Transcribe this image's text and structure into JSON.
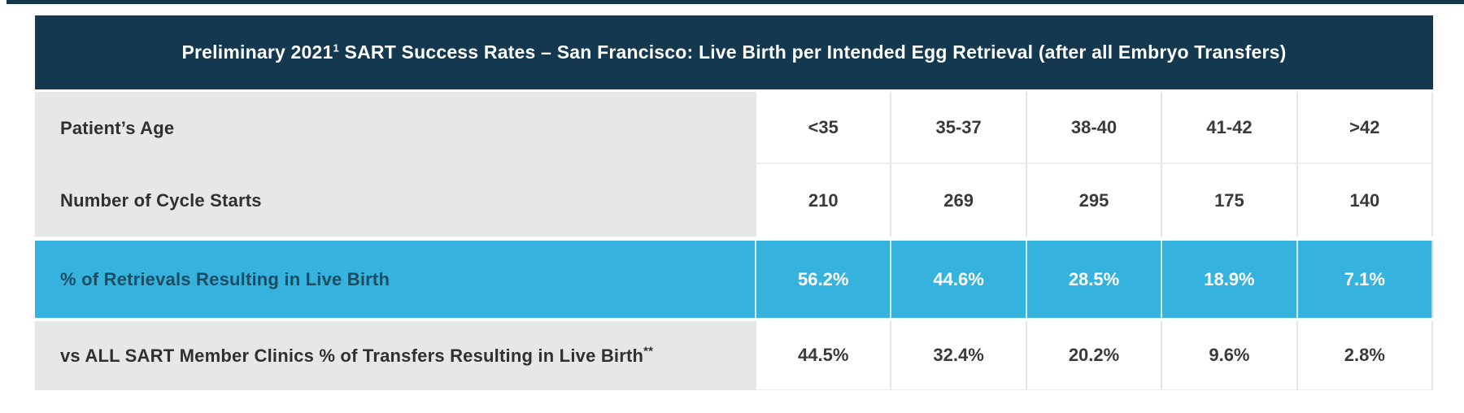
{
  "header": {
    "title_prefix": "Preliminary 2021",
    "title_sup": "1",
    "title_rest": " SART Success Rates – San Francisco: Live Birth per Intended Egg Retrieval (after all Embryo Transfers)"
  },
  "table": {
    "age_row": {
      "label": "Patient’s Age",
      "values": [
        "<35",
        "35-37",
        "38-40",
        "41-42",
        ">42"
      ]
    },
    "cycle_row": {
      "label": "Number of Cycle Starts",
      "values": [
        "210",
        "269",
        "295",
        "175",
        "140"
      ]
    },
    "live_birth_row": {
      "label": "% of Retrievals Resulting in Live Birth",
      "values": [
        "56.2%",
        "44.6%",
        "28.5%",
        "18.9%",
        "7.1%"
      ]
    },
    "sart_row": {
      "label_main": "vs ALL SART Member Clinics % of Transfers Resulting in Live Birth",
      "label_sup": "**",
      "values": [
        "44.5%",
        "32.4%",
        "20.2%",
        "9.6%",
        "2.8%"
      ]
    }
  },
  "colors": {
    "header_navy": "#13384f",
    "highlight_blue": "#35b3de",
    "label_gray": "#e6e7e7",
    "value_text": "#3a3a3a"
  },
  "chart_data": {
    "type": "table",
    "title": "Preliminary 2021¹ SART Success Rates – San Francisco: Live Birth per Intended Egg Retrieval (after all Embryo Transfers)",
    "columns": [
      "<35",
      "35-37",
      "38-40",
      "41-42",
      ">42"
    ],
    "column_axis_label": "Patient’s Age",
    "rows": [
      {
        "label": "Number of Cycle Starts",
        "values": [
          210,
          269,
          295,
          175,
          140
        ]
      },
      {
        "label": "% of Retrievals Resulting in Live Birth",
        "values": [
          56.2,
          44.6,
          28.5,
          18.9,
          7.1
        ],
        "unit": "%",
        "highlighted": true
      },
      {
        "label": "vs ALL SART Member Clinics % of Transfers Resulting in Live Birth**",
        "values": [
          44.5,
          32.4,
          20.2,
          9.6,
          2.8
        ],
        "unit": "%"
      }
    ]
  }
}
